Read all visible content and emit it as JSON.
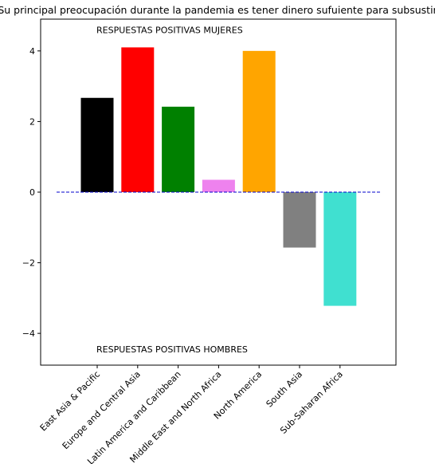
{
  "chart_data": {
    "type": "bar",
    "title": "Su principal preocupación durante la pandemia es tener dinero sufuiente para subsustir",
    "xlabel": "",
    "ylabel": "",
    "categories": [
      "East Asia & Pacific",
      "Europe and Central Asia",
      "Latin America and Caribbean",
      "Middle East and North Africa",
      "North America",
      "South Asia",
      "Sub-Saharan Africa"
    ],
    "values": [
      2.67,
      4.1,
      2.42,
      0.35,
      4.0,
      -1.57,
      -3.22
    ],
    "colors": [
      "#000000",
      "#ff0000",
      "#008000",
      "#ee82ee",
      "#ffa500",
      "#808080",
      "#40e0d0"
    ],
    "ylim": [
      -4.9,
      4.9
    ],
    "yticks": [
      -4,
      -2,
      0,
      2,
      4
    ],
    "ytick_labels": [
      "−4",
      "−2",
      "0",
      "2",
      "4"
    ],
    "reference_line": {
      "y": 0,
      "color": "#0000cd",
      "style": "dashed"
    },
    "annotations": [
      {
        "text": "RESPUESTAS POSITIVAS MUJERES",
        "x": 0,
        "y": 4.6
      },
      {
        "text": "RESPUESTAS POSITIVAS HOMBRES",
        "x": 0,
        "y": -4.45
      }
    ],
    "grid": false,
    "legend": "none"
  }
}
